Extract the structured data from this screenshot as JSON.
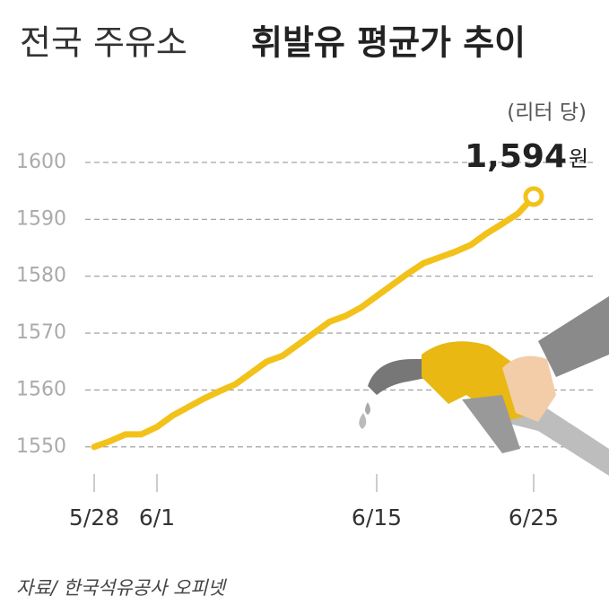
{
  "chart_data": {
    "type": "line",
    "title": "전국 주유소",
    "title_bold": "휘발유 평균가 추이",
    "unit_note": "(리터 당)",
    "source": "자료/ 한국석유공사 오피넷",
    "x": [
      "5/28",
      "5/29",
      "5/30",
      "5/31",
      "6/1",
      "6/2",
      "6/3",
      "6/4",
      "6/5",
      "6/6",
      "6/7",
      "6/8",
      "6/9",
      "6/10",
      "6/11",
      "6/12",
      "6/13",
      "6/14",
      "6/15",
      "6/16",
      "6/17",
      "6/18",
      "6/19",
      "6/20",
      "6/21",
      "6/22",
      "6/23",
      "6/24",
      "6/25"
    ],
    "series": [
      {
        "color": "#f2c21b",
        "values": [
          1550,
          1551,
          1552.2,
          1552.2,
          1553.5,
          1555.5,
          1557,
          1558.5,
          1559.8,
          1561,
          1563,
          1565,
          1566,
          1568,
          1570,
          1572,
          1573,
          1574.5,
          1576.5,
          1578.5,
          1580.5,
          1582.3,
          1583.3,
          1584.3,
          1585.5,
          1587.5,
          1589.2,
          1591,
          1594
        ],
        "value_labels": [
          null,
          null,
          null,
          null,
          null,
          null,
          null,
          null,
          null,
          null,
          null,
          null,
          null,
          null,
          null,
          null,
          null,
          null,
          null,
          null,
          null,
          null,
          null,
          null,
          null,
          null,
          null,
          null,
          "1,594"
        ]
      }
    ],
    "value_label_unit": "원",
    "xticks": [
      "5/28",
      "6/1",
      "6/15",
      "6/25"
    ],
    "ylim": [
      1546.5,
      1603.3
    ],
    "yticks": [
      1550,
      1560,
      1570,
      1580,
      1590,
      1600
    ],
    "grid": true
  }
}
